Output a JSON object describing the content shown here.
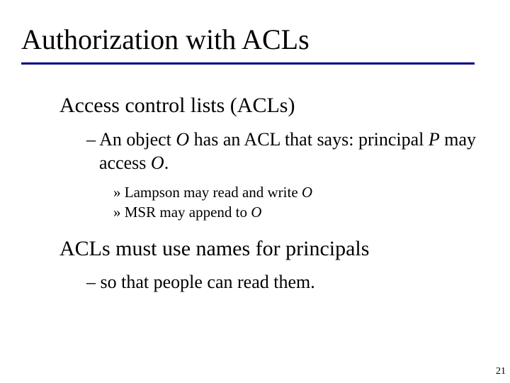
{
  "title": "Authorization with ACLs",
  "underline_color": "#000080",
  "body": {
    "p1": {
      "text": "Access control lists (ACLs)",
      "sub1": {
        "dash": "–",
        "pre": " An object ",
        "O1": "O",
        "mid1": " has an ACL that says: principal ",
        "P": "P",
        "mid2": " may access ",
        "O2": "O",
        "post": "."
      },
      "ex1": {
        "raquo": "»",
        "pre": " Lampson may read and write ",
        "O": "O"
      },
      "ex2": {
        "raquo": "»",
        "pre": " MSR may append to ",
        "O": "O"
      }
    },
    "p2": {
      "text": "ACLs must use names for principals",
      "sub1": {
        "dash": "–",
        "text": " so that people can read them."
      }
    }
  },
  "page_number": "21"
}
